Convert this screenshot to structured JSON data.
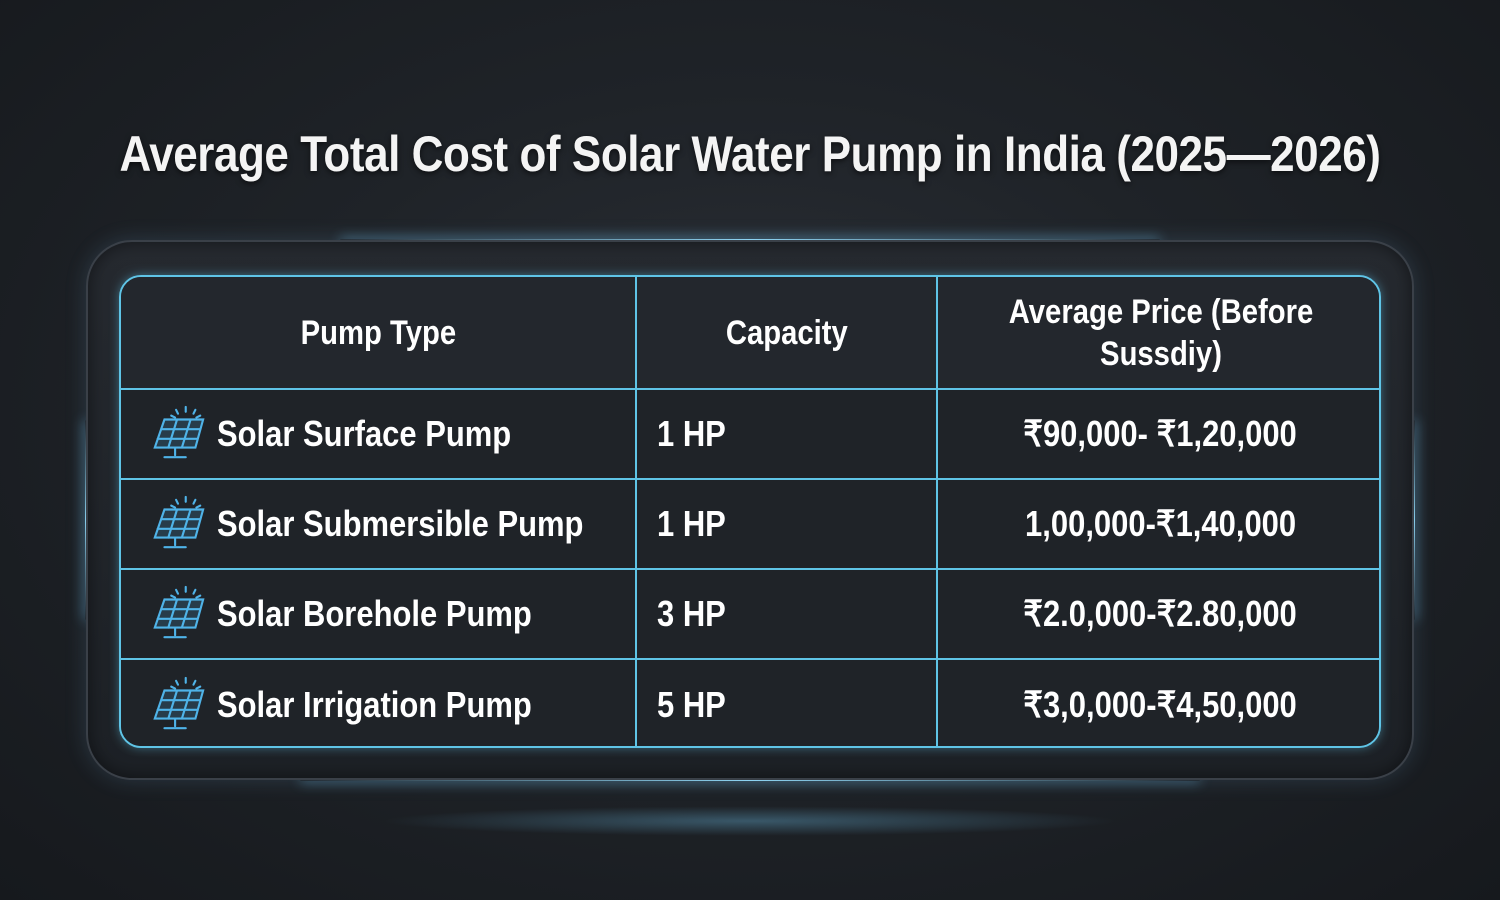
{
  "title": "Average Total Cost of Solar Water Pump in India (2025—2026)",
  "table": {
    "headers": [
      "Pump Type",
      "Capacity",
      "Average Price (Before Sussdiy)"
    ],
    "rows": [
      {
        "pump_type": "Solar Surface Pump",
        "capacity": "1 HP",
        "price": "₹90,000- ₹1,20,000",
        "icon": "solar-panel-icon"
      },
      {
        "pump_type": "Solar Submersible Pump",
        "capacity": "1 HP",
        "price": "1,00,000-₹1,40,000",
        "icon": "solar-panel-icon"
      },
      {
        "pump_type": "Solar Borehole Pump",
        "capacity": "3 HP",
        "price": "₹2.0,000-₹2.80,000",
        "icon": "solar-panel-icon"
      },
      {
        "pump_type": "Solar Irrigation Pump",
        "capacity": "5 HP",
        "price": "₹3,0,000-₹4,50,000",
        "icon": "solar-panel-icon"
      }
    ]
  },
  "colors": {
    "accent": "#5fc4e6",
    "icon": "#4fb3e8",
    "background": "#1f2328"
  }
}
